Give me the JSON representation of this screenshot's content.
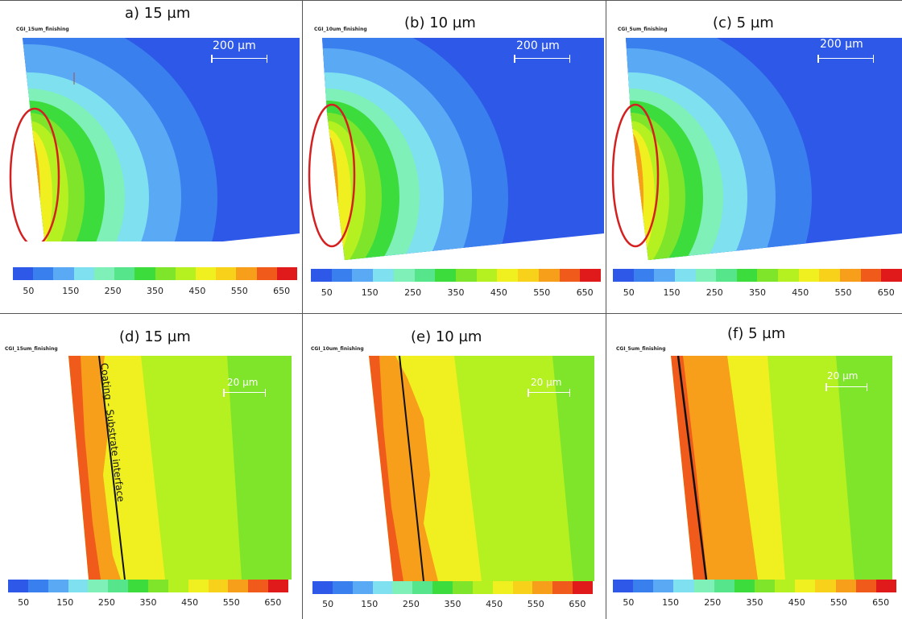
{
  "colorbar": {
    "colors": [
      "#2d58e8",
      "#3a7fee",
      "#5aa9f5",
      "#7fe0f0",
      "#7ff0b8",
      "#56e58a",
      "#3ddc3d",
      "#7fe52a",
      "#b5f020",
      "#f0f020",
      "#f7d11a",
      "#f79e1a",
      "#f05a1a",
      "#e01a1a"
    ],
    "ticks": [
      "50",
      "150",
      "250",
      "350",
      "450",
      "550",
      "650"
    ]
  },
  "panels": {
    "a": {
      "title": "a) 15 µm",
      "sim_label": "CGI_15um_finishing",
      "scale_label": "200 µm"
    },
    "b": {
      "title": "(b) 10 µm",
      "sim_label": "CGI_10um_finishing",
      "scale_label": "200 µm"
    },
    "c": {
      "title": "(c) 5 µm",
      "sim_label": "CGI_5um_finishing",
      "scale_label": "200 µm"
    },
    "d": {
      "title": "(d) 15 µm",
      "sim_label": "CGI_15um_finishing",
      "scale_label": "20 µm",
      "annotation": "Coating - Substrate interface"
    },
    "e": {
      "title": "(e) 10 µm",
      "sim_label": "CGI_10um_finishing",
      "scale_label": "20 µm"
    },
    "f": {
      "title": "(f) 5 µm",
      "sim_label": "CGI_5um_finishing",
      "scale_label": "20 µm"
    }
  }
}
